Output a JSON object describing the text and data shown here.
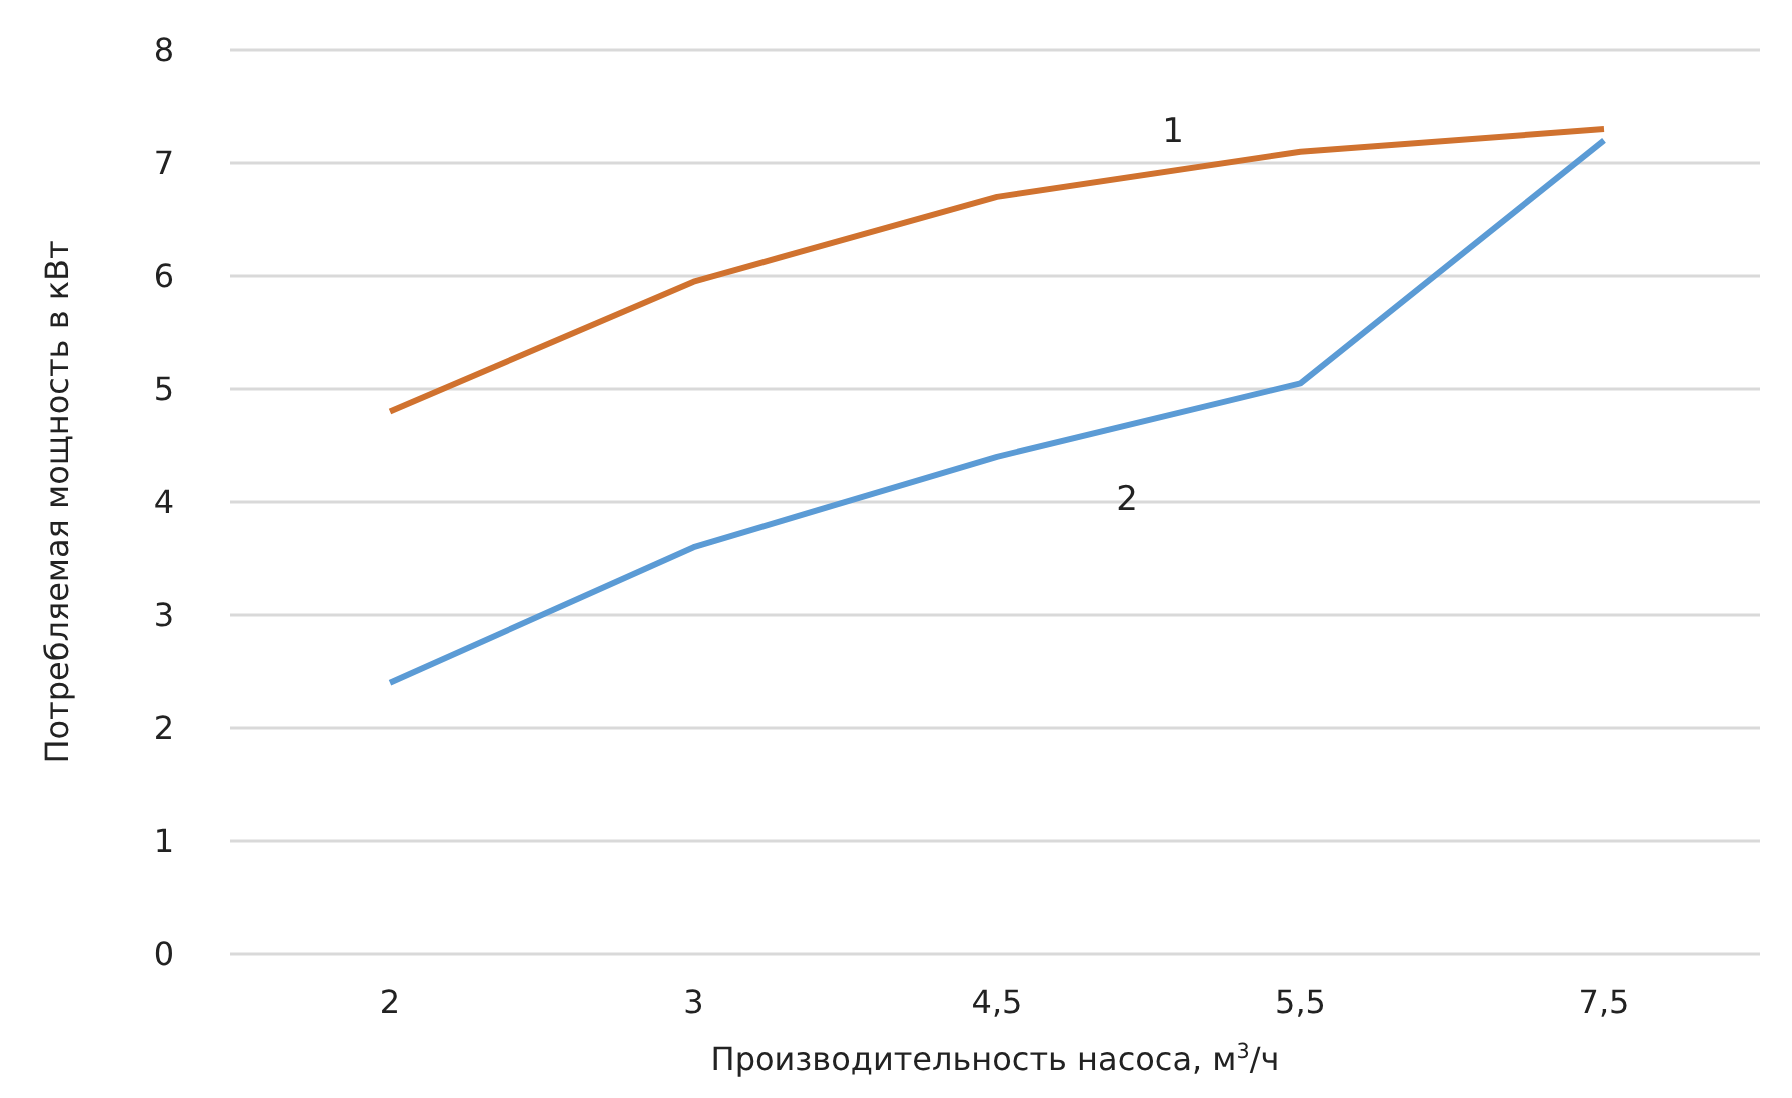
{
  "chart_data": {
    "type": "line",
    "xlabel": "Производительность насоса, м$^{3}$/ч",
    "ylabel": "Потребляемая мощность в кВт",
    "categories": [
      "2",
      "3",
      "4,5",
      "5,5",
      "7,5"
    ],
    "series": [
      {
        "name": "1",
        "color": "#d0722f",
        "values": [
          4.8,
          5.95,
          6.7,
          7.1,
          7.3
        ]
      },
      {
        "name": "2",
        "color": "#5b9bd5",
        "values": [
          2.4,
          3.6,
          4.4,
          5.05,
          7.2
        ]
      }
    ],
    "ylim": [
      0,
      8
    ],
    "yticks": [
      0,
      1,
      2,
      3,
      4,
      5,
      6,
      7,
      8
    ],
    "grid": "y",
    "legend": false,
    "marker": "none",
    "line_style": "solid"
  }
}
